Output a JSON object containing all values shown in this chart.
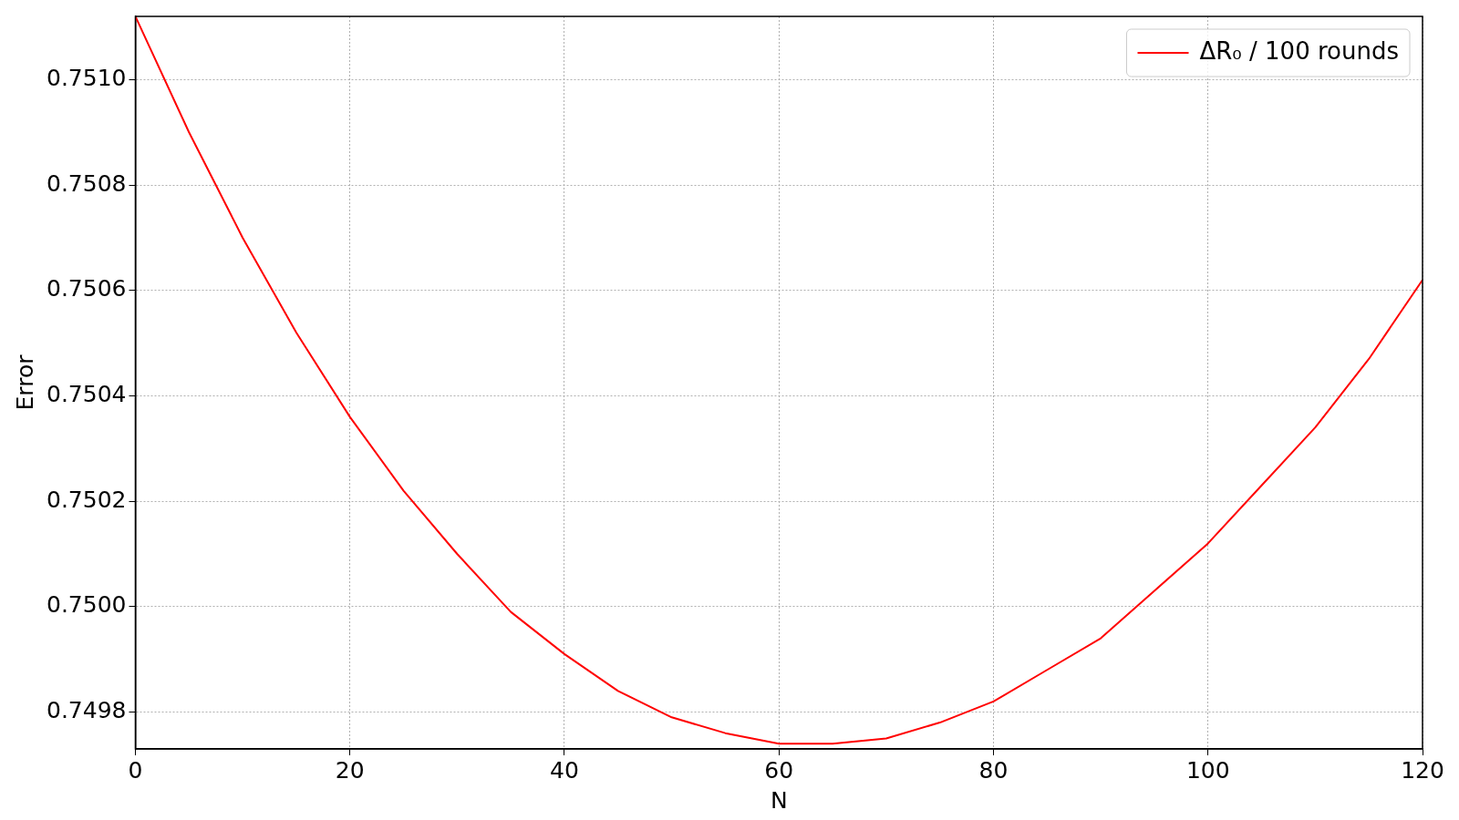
{
  "chart_data": {
    "type": "line",
    "xlabel": "N",
    "ylabel": "Error",
    "x": [
      0,
      5,
      10,
      15,
      20,
      25,
      30,
      35,
      40,
      45,
      50,
      55,
      60,
      65,
      70,
      75,
      80,
      85,
      90,
      95,
      100,
      105,
      110,
      115,
      120
    ],
    "series": [
      {
        "name": "ΔR₀ / 100 rounds",
        "color": "#ff0000",
        "values": [
          0.75112,
          0.7509,
          0.7507,
          0.75052,
          0.75036,
          0.75022,
          0.7501,
          0.74999,
          0.74991,
          0.74984,
          0.74979,
          0.74976,
          0.74974,
          0.74974,
          0.74975,
          0.74978,
          0.74982,
          0.74988,
          0.74994,
          0.75003,
          0.75012,
          0.75023,
          0.75034,
          0.75047,
          0.75062
        ]
      }
    ],
    "xlim": [
      0,
      120
    ],
    "xticks": [
      0,
      20,
      40,
      60,
      80,
      100,
      120
    ],
    "ylim": [
      0.74973,
      0.75112
    ],
    "yticks": [
      {
        "value": 0.7498,
        "label": "0.7498"
      },
      {
        "value": 0.75,
        "label": "0.7500"
      },
      {
        "value": 0.7502,
        "label": "0.7502"
      },
      {
        "value": 0.7504,
        "label": "0.7504"
      },
      {
        "value": 0.7506,
        "label": "0.7506"
      },
      {
        "value": 0.7508,
        "label": "0.7508"
      },
      {
        "value": 0.751,
        "label": "0.7510"
      }
    ],
    "grid": true,
    "legend": "top right",
    "marker": "none",
    "line_style": "solid"
  }
}
